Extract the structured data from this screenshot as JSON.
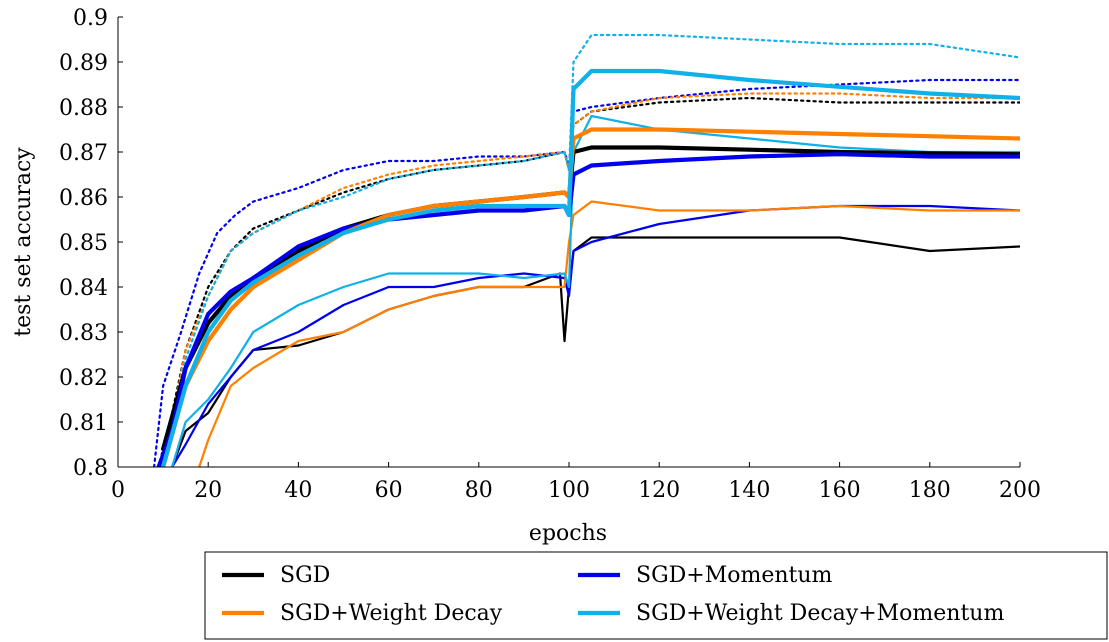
{
  "chart_data": {
    "type": "line",
    "title": "",
    "xlabel": "epochs",
    "ylabel": "test set accuracy",
    "xlim": [
      0,
      200
    ],
    "ylim": [
      0.8,
      0.9
    ],
    "xticks": [
      0,
      20,
      40,
      60,
      80,
      100,
      120,
      140,
      160,
      180,
      200
    ],
    "xtick_labels": [
      "0",
      "20",
      "40",
      "60",
      "80",
      "100",
      "120",
      "140",
      "160",
      "180",
      "200"
    ],
    "yticks": [
      0.8,
      0.81,
      0.82,
      0.83,
      0.84,
      0.85,
      0.86,
      0.87,
      0.88,
      0.89,
      0.9
    ],
    "ytick_labels": [
      "0.8",
      "0.81",
      "0.82",
      "0.83",
      "0.84",
      "0.85",
      "0.86",
      "0.87",
      "0.88",
      "0.89",
      "0.9"
    ],
    "grid": false,
    "legend": {
      "placement": "bottom-outside",
      "entries": [
        {
          "label": "SGD",
          "color": "#000000"
        },
        {
          "label": "SGD+Momentum",
          "color": "#0000ee"
        },
        {
          "label": "SGD+Weight Decay",
          "color": "#ff8000"
        },
        {
          "label": "SGD+Weight Decay+Momentum",
          "color": "#10b0e8"
        }
      ]
    },
    "line_styles": [
      "solid thick",
      "solid thin",
      "dotted"
    ],
    "series": [
      {
        "name": "SGD",
        "color": "#000000",
        "style": "solid thick",
        "x": [
          10,
          15,
          20,
          25,
          30,
          40,
          50,
          60,
          70,
          80,
          90,
          99,
          100,
          101,
          105,
          120,
          140,
          160,
          180,
          200
        ],
        "y": [
          0.804,
          0.822,
          0.832,
          0.838,
          0.842,
          0.848,
          0.853,
          0.856,
          0.858,
          0.859,
          0.86,
          0.861,
          0.86,
          0.87,
          0.871,
          0.871,
          0.8705,
          0.87,
          0.8697,
          0.8695
        ]
      },
      {
        "name": "SGD",
        "color": "#000000",
        "style": "solid thin",
        "x": [
          12,
          15,
          20,
          25,
          30,
          40,
          50,
          60,
          70,
          80,
          90,
          98,
          99,
          100,
          101,
          105,
          120,
          140,
          160,
          180,
          200
        ],
        "y": [
          0.8,
          0.808,
          0.812,
          0.82,
          0.826,
          0.827,
          0.83,
          0.835,
          0.838,
          0.84,
          0.84,
          0.843,
          0.828,
          0.84,
          0.848,
          0.851,
          0.851,
          0.851,
          0.851,
          0.848,
          0.849
        ]
      },
      {
        "name": "SGD",
        "color": "#000000",
        "style": "dotted",
        "x": [
          9,
          12,
          15,
          20,
          25,
          30,
          40,
          50,
          60,
          70,
          80,
          90,
          99,
          100,
          101,
          105,
          120,
          140,
          160,
          180,
          200
        ],
        "y": [
          0.8,
          0.812,
          0.826,
          0.84,
          0.848,
          0.853,
          0.857,
          0.861,
          0.864,
          0.866,
          0.867,
          0.868,
          0.87,
          0.866,
          0.876,
          0.879,
          0.881,
          0.882,
          0.881,
          0.881,
          0.881
        ]
      },
      {
        "name": "SGD+Momentum",
        "color": "#0000ee",
        "style": "solid thick",
        "x": [
          9,
          12,
          15,
          20,
          25,
          30,
          40,
          50,
          60,
          70,
          80,
          90,
          99,
          100,
          101,
          105,
          120,
          140,
          160,
          180,
          200
        ],
        "y": [
          0.8,
          0.808,
          0.822,
          0.834,
          0.839,
          0.842,
          0.849,
          0.853,
          0.855,
          0.856,
          0.857,
          0.857,
          0.858,
          0.856,
          0.865,
          0.867,
          0.868,
          0.869,
          0.8695,
          0.869,
          0.869
        ]
      },
      {
        "name": "SGD+Momentum",
        "color": "#0000ee",
        "style": "solid thin",
        "x": [
          12,
          15,
          20,
          25,
          30,
          40,
          50,
          60,
          70,
          80,
          90,
          99,
          100,
          101,
          105,
          120,
          140,
          160,
          180,
          200
        ],
        "y": [
          0.8,
          0.805,
          0.814,
          0.82,
          0.826,
          0.83,
          0.836,
          0.84,
          0.84,
          0.842,
          0.843,
          0.842,
          0.838,
          0.848,
          0.85,
          0.854,
          0.857,
          0.858,
          0.858,
          0.857
        ]
      },
      {
        "name": "SGD+Momentum",
        "color": "#0000ee",
        "style": "dotted",
        "x": [
          8,
          10,
          14,
          18,
          22,
          26,
          30,
          40,
          50,
          60,
          70,
          80,
          90,
          99,
          100,
          101,
          105,
          120,
          140,
          160,
          180,
          200
        ],
        "y": [
          0.8,
          0.818,
          0.83,
          0.843,
          0.852,
          0.856,
          0.859,
          0.862,
          0.866,
          0.868,
          0.868,
          0.869,
          0.869,
          0.87,
          0.867,
          0.879,
          0.88,
          0.882,
          0.884,
          0.885,
          0.886,
          0.886
        ]
      },
      {
        "name": "SGD+Weight Decay",
        "color": "#ff8000",
        "style": "solid thick",
        "x": [
          10,
          15,
          20,
          25,
          30,
          40,
          50,
          60,
          70,
          80,
          90,
          99,
          100,
          101,
          105,
          120,
          140,
          160,
          180,
          200
        ],
        "y": [
          0.8,
          0.818,
          0.828,
          0.835,
          0.84,
          0.846,
          0.852,
          0.856,
          0.858,
          0.859,
          0.86,
          0.861,
          0.86,
          0.873,
          0.875,
          0.875,
          0.8745,
          0.874,
          0.8735,
          0.873
        ]
      },
      {
        "name": "SGD+Weight Decay",
        "color": "#ff8000",
        "style": "solid thin",
        "x": [
          18,
          20,
          25,
          30,
          40,
          50,
          60,
          70,
          80,
          90,
          99,
          100,
          101,
          105,
          120,
          140,
          160,
          180,
          200
        ],
        "y": [
          0.8,
          0.806,
          0.818,
          0.822,
          0.828,
          0.83,
          0.835,
          0.838,
          0.84,
          0.84,
          0.84,
          0.85,
          0.856,
          0.859,
          0.857,
          0.857,
          0.858,
          0.857,
          0.857
        ]
      },
      {
        "name": "SGD+Weight Decay",
        "color": "#ff8000",
        "style": "dotted",
        "x": [
          9,
          12,
          15,
          20,
          25,
          30,
          40,
          50,
          60,
          70,
          80,
          90,
          99,
          100,
          101,
          105,
          120,
          140,
          160,
          180,
          200
        ],
        "y": [
          0.8,
          0.81,
          0.826,
          0.838,
          0.848,
          0.852,
          0.857,
          0.862,
          0.865,
          0.867,
          0.868,
          0.869,
          0.87,
          0.866,
          0.876,
          0.879,
          0.882,
          0.883,
          0.883,
          0.882,
          0.882
        ]
      },
      {
        "name": "SGD+Weight Decay+Momentum",
        "color": "#10b0e8",
        "style": "solid thick",
        "x": [
          10,
          15,
          20,
          25,
          30,
          40,
          50,
          60,
          70,
          80,
          90,
          99,
          100,
          101,
          105,
          120,
          140,
          160,
          180,
          200
        ],
        "y": [
          0.8,
          0.818,
          0.83,
          0.837,
          0.841,
          0.847,
          0.852,
          0.855,
          0.857,
          0.858,
          0.858,
          0.858,
          0.856,
          0.884,
          0.888,
          0.888,
          0.886,
          0.8845,
          0.883,
          0.882
        ]
      },
      {
        "name": "SGD+Weight Decay+Momentum",
        "color": "#10b0e8",
        "style": "solid thin",
        "x": [
          12,
          15,
          20,
          25,
          30,
          40,
          50,
          60,
          70,
          80,
          90,
          99,
          100,
          101,
          105,
          120,
          140,
          160,
          180,
          200
        ],
        "y": [
          0.8,
          0.81,
          0.815,
          0.822,
          0.83,
          0.836,
          0.84,
          0.843,
          0.843,
          0.843,
          0.842,
          0.843,
          0.84,
          0.87,
          0.878,
          0.875,
          0.873,
          0.871,
          0.87,
          0.87
        ]
      },
      {
        "name": "SGD+Weight Decay+Momentum",
        "color": "#10b0e8",
        "style": "dotted",
        "x": [
          9,
          12,
          15,
          20,
          25,
          30,
          40,
          50,
          60,
          70,
          80,
          90,
          99,
          100,
          101,
          105,
          120,
          140,
          160,
          180,
          200
        ],
        "y": [
          0.8,
          0.81,
          0.824,
          0.838,
          0.848,
          0.852,
          0.857,
          0.86,
          0.864,
          0.866,
          0.867,
          0.868,
          0.87,
          0.866,
          0.89,
          0.896,
          0.896,
          0.895,
          0.894,
          0.894,
          0.891
        ]
      }
    ]
  }
}
